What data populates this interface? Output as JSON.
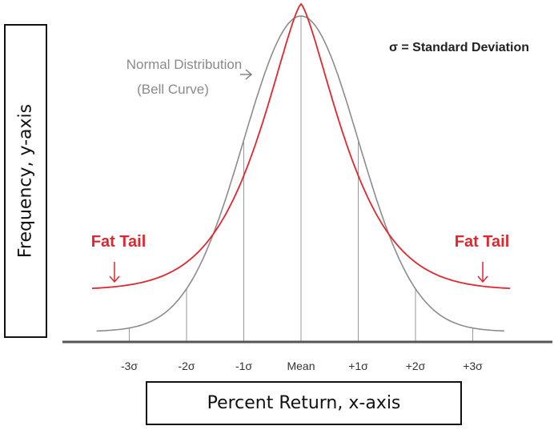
{
  "chart_data": {
    "type": "line",
    "xlabel": "Percent Return, x-axis",
    "ylabel": "Frequency, y-axis",
    "categories": [
      "-3σ",
      "-2σ",
      "-1σ",
      "Mean",
      "+1σ",
      "+2σ",
      "+3σ"
    ],
    "x_range": [
      -3.8,
      3.8
    ],
    "series": [
      {
        "name": "Normal Distribution (Bell Curve)",
        "color": "#8c8c8c"
      },
      {
        "name": "Fat Tail",
        "color": "#e3262d"
      }
    ],
    "annotations": {
      "normal_line1": "Normal Distribution",
      "normal_line2": "(Bell Curve)",
      "sigma_note": "σ = Standard Deviation",
      "fat_tail_left": "Fat Tail",
      "fat_tail_right": "Fat Tail"
    }
  }
}
